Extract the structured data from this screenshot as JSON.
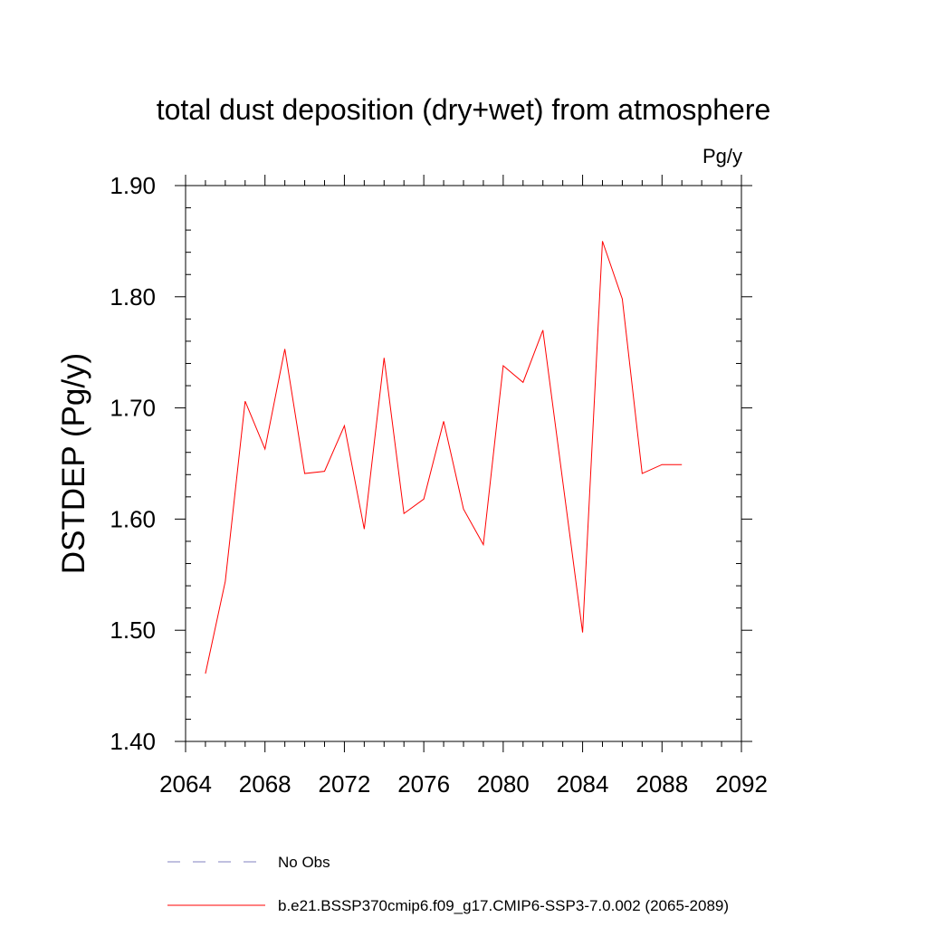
{
  "chart_data": {
    "type": "line",
    "title": "total dust deposition (dry+wet) from atmosphere",
    "units_label": "Pg/y",
    "ylabel": "DSTDEP  (Pg/y)",
    "xlabel": "",
    "xlim": [
      2064,
      2092
    ],
    "ylim": [
      1.4,
      1.9
    ],
    "x_ticks": [
      2064,
      2068,
      2072,
      2076,
      2080,
      2084,
      2088,
      2092
    ],
    "x_tick_labels": [
      "2064",
      "2068",
      "2072",
      "2076",
      "2080",
      "2084",
      "2088",
      "2092"
    ],
    "y_ticks": [
      1.4,
      1.5,
      1.6,
      1.7,
      1.8,
      1.9
    ],
    "y_tick_labels": [
      "1.40",
      "1.50",
      "1.60",
      "1.70",
      "1.80",
      "1.90"
    ],
    "grid": false,
    "legend_position": "bottom",
    "series": [
      {
        "name": "b.e21.BSSP370cmip6.f09_g17.CMIP6-SSP3-7.0.002 (2065-2089)",
        "color": "#ff0000",
        "style": "solid",
        "x": [
          2065,
          2066,
          2067,
          2068,
          2069,
          2070,
          2071,
          2072,
          2073,
          2074,
          2075,
          2076,
          2077,
          2078,
          2079,
          2080,
          2081,
          2082,
          2083,
          2084,
          2085,
          2086,
          2087,
          2088,
          2089
        ],
        "y": [
          1.461,
          1.544,
          1.706,
          1.663,
          1.753,
          1.641,
          1.643,
          1.684,
          1.591,
          1.745,
          1.605,
          1.618,
          1.688,
          1.609,
          1.577,
          1.738,
          1.723,
          1.77,
          1.634,
          1.498,
          1.85,
          1.798,
          1.641,
          1.649,
          1.649
        ]
      }
    ],
    "legend": [
      {
        "label": "No Obs",
        "color": "#8080c0",
        "style": "dashed"
      },
      {
        "label": "b.e21.BSSP370cmip6.f09_g17.CMIP6-SSP3-7.0.002 (2065-2089)",
        "color": "#ff0000",
        "style": "solid"
      }
    ]
  }
}
